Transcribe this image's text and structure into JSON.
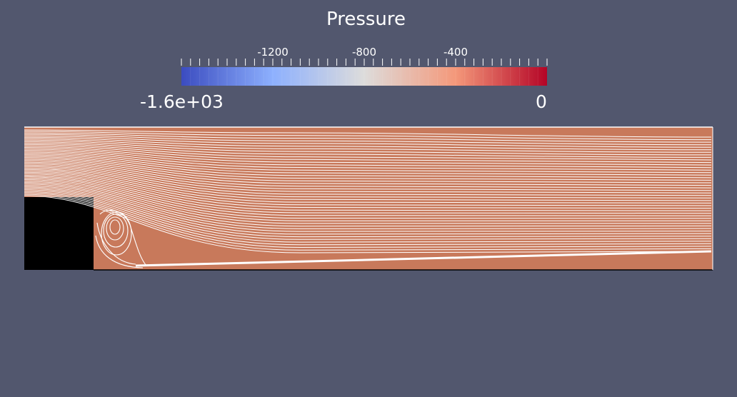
{
  "legend": {
    "title": "Pressure",
    "range_min_label": "-1.6e+03",
    "range_max_label": "0",
    "tick_labels": [
      {
        "value": -1200,
        "text": "-1200"
      },
      {
        "value": -800,
        "text": "-800"
      },
      {
        "value": -400,
        "text": "-400"
      }
    ],
    "range": [
      -1600,
      0
    ],
    "colormap": [
      "#3b4cc0",
      "#8db0fe",
      "#dddcdb",
      "#f4987a",
      "#b40426"
    ]
  },
  "field": {
    "fill_color": "#c8795b",
    "obstacle_color": "#000000",
    "streamline_color": "#ffffff",
    "background_color": "#52576e"
  }
}
